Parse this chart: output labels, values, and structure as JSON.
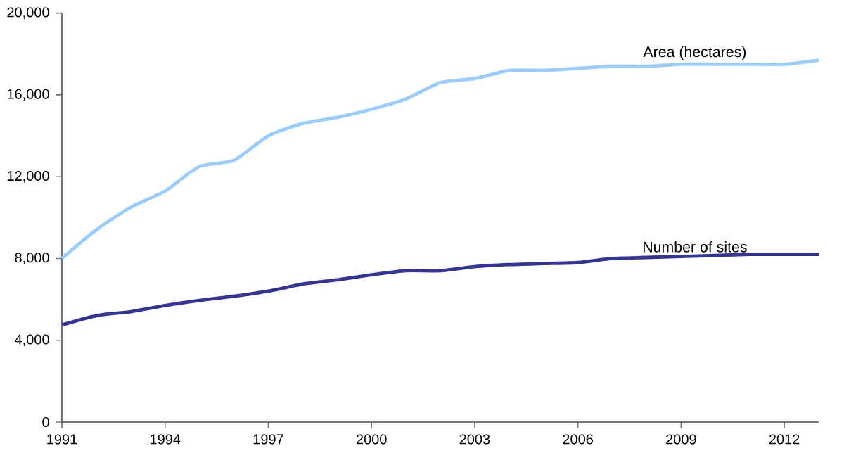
{
  "chart_data": {
    "type": "line",
    "x": [
      1991,
      1992,
      1993,
      1994,
      1995,
      1996,
      1997,
      1998,
      1999,
      2000,
      2001,
      2002,
      2003,
      2004,
      2005,
      2006,
      2007,
      2008,
      2009,
      2010,
      2011,
      2012,
      2013
    ],
    "series": [
      {
        "name": "Area (hectares)",
        "color": "#99ccff",
        "values": [
          8000,
          9400,
          10500,
          11300,
          12500,
          12800,
          14000,
          14600,
          14900,
          15300,
          15800,
          16600,
          16800,
          17200,
          17200,
          17300,
          17400,
          17400,
          17500,
          17500,
          17500,
          17500,
          17700
        ]
      },
      {
        "name": "Number of sites",
        "color": "#333399",
        "values": [
          4750,
          5200,
          5400,
          5700,
          5950,
          6150,
          6400,
          6750,
          6950,
          7200,
          7400,
          7400,
          7600,
          7700,
          7750,
          7800,
          8000,
          8050,
          8100,
          8150,
          8200,
          8200,
          8200
        ]
      }
    ],
    "xlim": [
      1991,
      2013
    ],
    "xticks": [
      1991,
      1994,
      1997,
      2000,
      2003,
      2006,
      2009,
      2012
    ],
    "ylim": [
      0,
      20000
    ],
    "yticks": [
      0,
      {
        "value": 4000,
        "label": "4,000"
      },
      {
        "value": 8000,
        "label": "8,000"
      },
      {
        "value": 12000,
        "label": "12,000"
      },
      {
        "value": 16000,
        "label": "16,000"
      },
      {
        "value": 20000,
        "label": "20,000"
      }
    ],
    "grid": false,
    "legend": false,
    "marker": "none",
    "line_style": "solid"
  }
}
